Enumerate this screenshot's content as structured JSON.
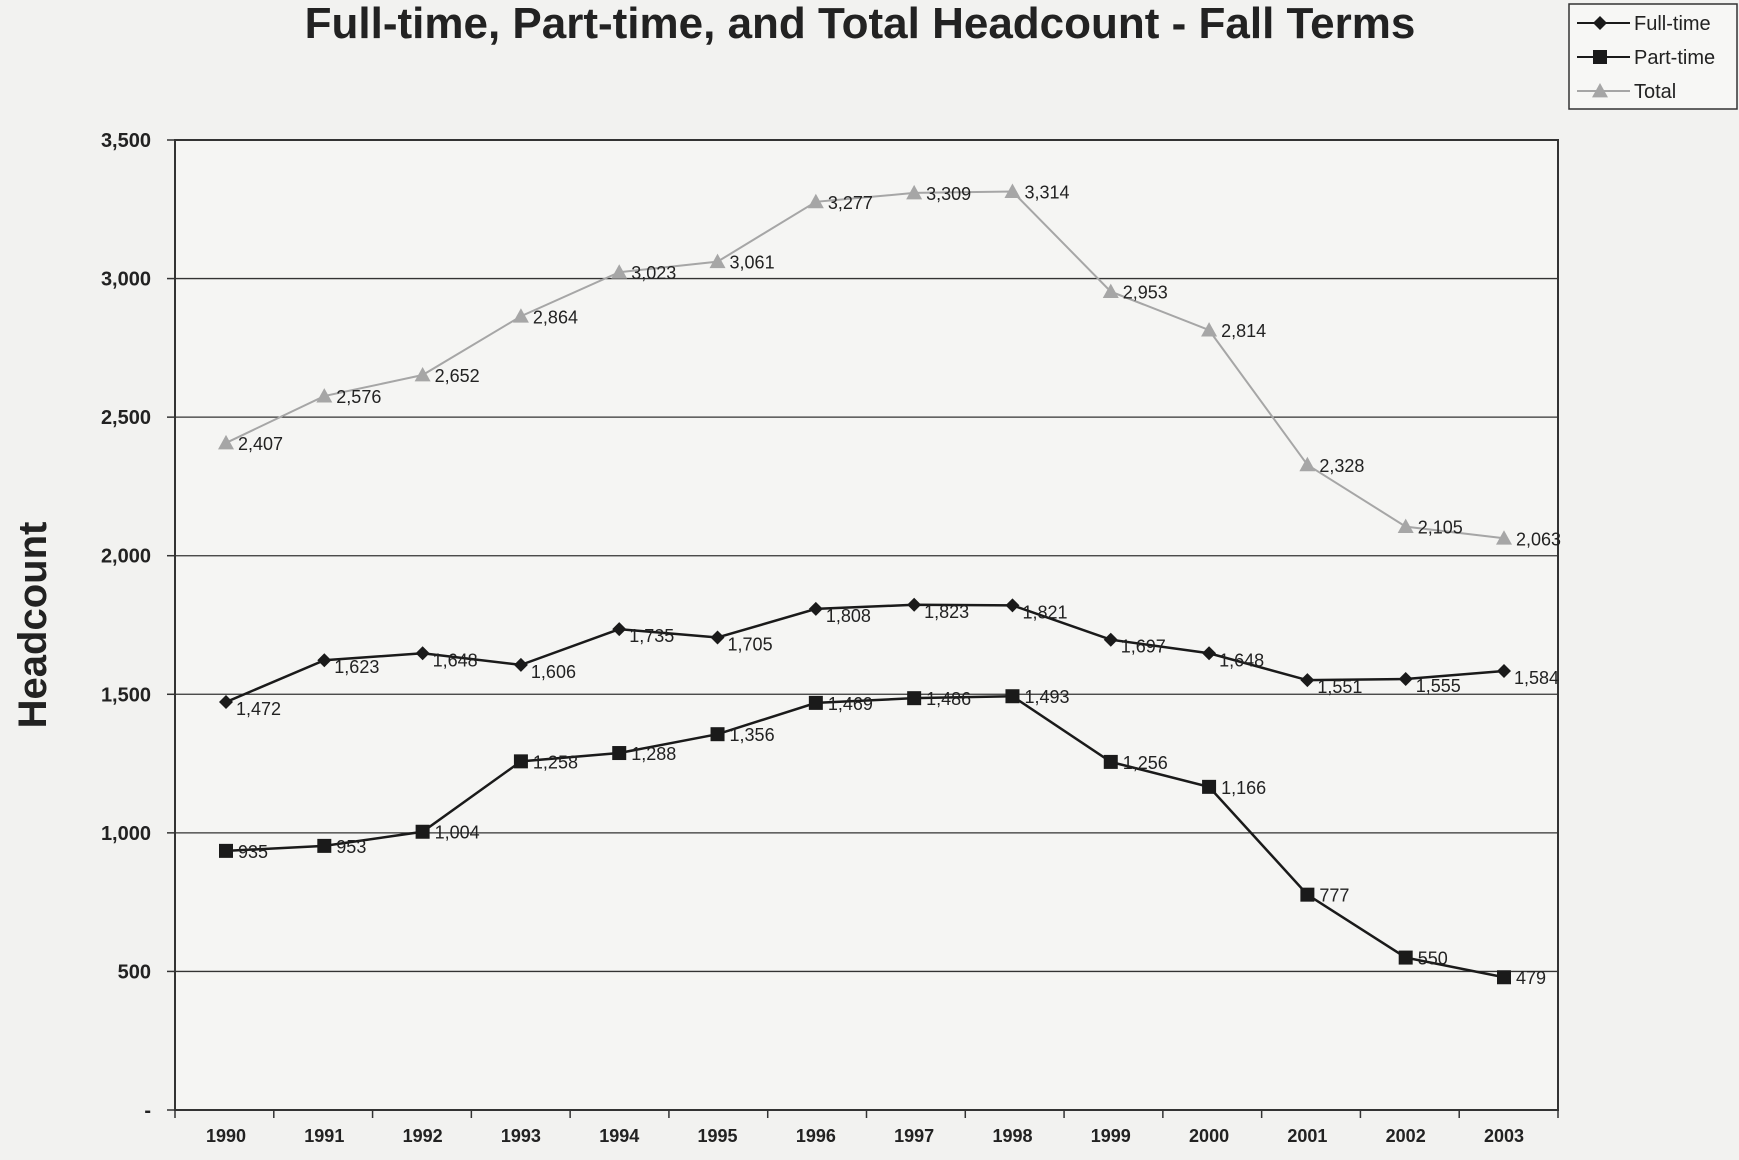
{
  "chart_data": {
    "type": "line",
    "title": "Full-time, Part-time, and Total Headcount - Fall Terms",
    "ylabel": "Headcount",
    "xlabel": "",
    "categories": [
      "1990",
      "1991",
      "1992",
      "1993",
      "1994",
      "1995",
      "1996",
      "1997",
      "1998",
      "1999",
      "2000",
      "2001",
      "2002",
      "2003"
    ],
    "ylim": [
      0,
      3500
    ],
    "yticks": [
      0,
      500,
      1000,
      1500,
      2000,
      2500,
      3000,
      3500
    ],
    "ytick_labels": [
      "-",
      "500",
      "1,000",
      "1,500",
      "2,000",
      "2,500",
      "3,000",
      "3,500"
    ],
    "grid": true,
    "legend_position": "top-right",
    "series": [
      {
        "name": "Full-time",
        "marker": "diamond",
        "color": "#1a1a1a",
        "values": [
          1472,
          1623,
          1648,
          1606,
          1735,
          1705,
          1808,
          1823,
          1821,
          1697,
          1648,
          1551,
          1555,
          1584
        ],
        "labels": [
          "1,472",
          "1,623",
          "1,648",
          "1,606",
          "1,735",
          "1,705",
          "1,808",
          "1,823",
          "1,821",
          "1,697",
          "1,648",
          "1,551",
          "1,555",
          "1,584"
        ]
      },
      {
        "name": "Part-time",
        "marker": "square",
        "color": "#1a1a1a",
        "values": [
          935,
          953,
          1004,
          1258,
          1288,
          1356,
          1469,
          1486,
          1493,
          1256,
          1166,
          777,
          550,
          479
        ],
        "labels": [
          "935",
          "953",
          "1,004",
          "1,258",
          "1,288",
          "1,356",
          "1,469",
          "1,486",
          "1,493",
          "1,256",
          "1,166",
          "777",
          "550",
          "479"
        ]
      },
      {
        "name": "Total",
        "marker": "triangle",
        "color": "#a6a6a6",
        "values": [
          2407,
          2576,
          2652,
          2864,
          3023,
          3061,
          3277,
          3309,
          3314,
          2953,
          2814,
          2328,
          2105,
          2063
        ],
        "labels": [
          "2,407",
          "2,576",
          "2,652",
          "2,864",
          "3,023",
          "3,061",
          "3,277",
          "3,309",
          "3,314",
          "2,953",
          "2,814",
          "2,328",
          "2,105",
          "2,063"
        ]
      }
    ]
  }
}
